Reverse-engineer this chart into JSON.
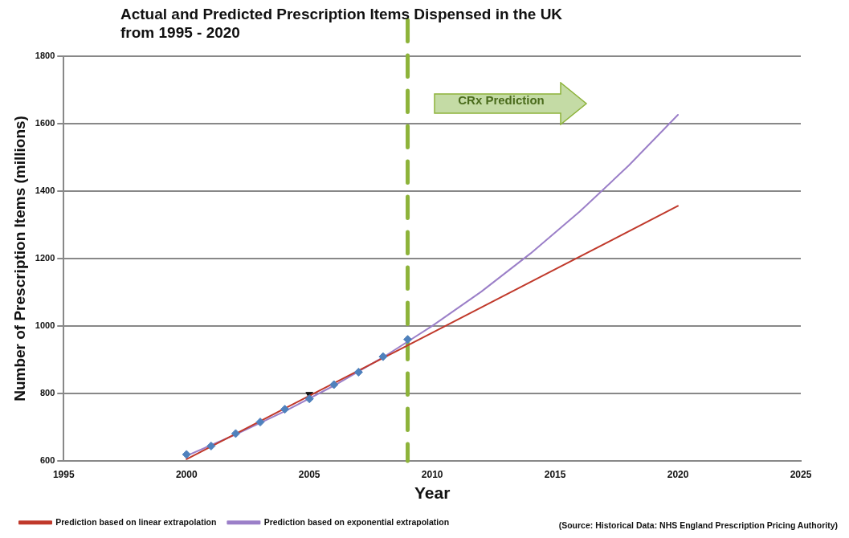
{
  "chart_data": {
    "type": "line",
    "title": "Actual and Predicted Prescription Items Dispensed in the UK from 1995 - 2020",
    "xlabel": "Year",
    "ylabel": "Number of Prescription Items (millions)",
    "series": [
      {
        "type": "scatter",
        "color": "#4f81bd",
        "marker": "diamond",
        "x": [
          2000,
          2001,
          2002,
          2003,
          2004,
          2005,
          2006,
          2007,
          2008,
          2009
        ],
        "values": [
          619,
          644,
          681,
          715,
          753,
          784,
          826,
          863,
          909,
          960
        ]
      },
      {
        "name": "Prediction based on linear extrapolation",
        "color": "#c0392b",
        "marker": "none",
        "x": [
          2000,
          2005,
          2010,
          2015,
          2020
        ],
        "values": [
          605,
          793,
          980,
          1168,
          1356
        ]
      },
      {
        "name": "Prediction based on exponential extrapolation",
        "color": "#9b7fc8",
        "marker": "none",
        "x": [
          2000,
          2002,
          2004,
          2006,
          2008,
          2010,
          2012,
          2014,
          2016,
          2018,
          2020
        ],
        "values": [
          615,
          678,
          747,
          823,
          907,
          1000,
          1102,
          1215,
          1339,
          1476,
          1626
        ]
      },
      {
        "type": "scatter",
        "color": "#111111",
        "marker": "triangle",
        "x": [
          2005
        ],
        "values": [
          797
        ]
      }
    ],
    "xlim": [
      1995,
      2025
    ],
    "xticks": [
      1995,
      2000,
      2005,
      2010,
      2015,
      2020,
      2025
    ],
    "ylim": [
      600,
      1800
    ],
    "yticks": [
      600,
      800,
      1000,
      1200,
      1400,
      1600,
      1800
    ],
    "grid": "y",
    "legend": "bottom",
    "ref_lines": [
      {
        "axis": "x",
        "value": 2009,
        "color": "#8db33a",
        "line_style": "dashed"
      }
    ],
    "annotations": [
      "CRx Prediction",
      "(Source: Historical Data: NHS England Prescription Pricing Authority)"
    ]
  }
}
